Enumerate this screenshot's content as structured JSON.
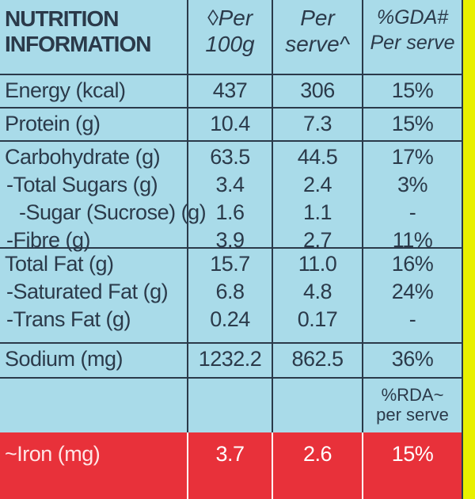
{
  "header": {
    "title_line1": "NUTRITION",
    "title_line2": "INFORMATION",
    "col1_line1": "◊Per",
    "col1_line2": "100g",
    "col2_line1": "Per",
    "col2_line2": "serve^",
    "col3_line1": "%GDA#",
    "col3_line2": "Per serve"
  },
  "rows": {
    "energy": {
      "label": "Energy (kcal)",
      "per100": "437",
      "serve": "306",
      "pct": "15%"
    },
    "protein": {
      "label": "Protein (g)",
      "per100": "10.4",
      "serve": "7.3",
      "pct": "15%"
    },
    "carb": {
      "label": "Carbohydrate (g)",
      "per100": "63.5",
      "serve": "44.5",
      "pct": "17%"
    },
    "sugars": {
      "label": "-Total Sugars (g)",
      "per100": "3.4",
      "serve": "2.4",
      "pct": "3%"
    },
    "sucrose": {
      "label": "-Sugar (Sucrose) (g)",
      "per100": "1.6",
      "serve": "1.1",
      "pct": "-"
    },
    "fibre": {
      "label": "-Fibre (g)",
      "per100": "3.9",
      "serve": "2.7",
      "pct": "11%"
    },
    "fat": {
      "label": "Total Fat (g)",
      "per100": "15.7",
      "serve": "11.0",
      "pct": "16%"
    },
    "satfat": {
      "label": "-Saturated Fat (g)",
      "per100": "6.8",
      "serve": "4.8",
      "pct": "24%"
    },
    "transfat": {
      "label": "-Trans Fat (g)",
      "per100": "0.24",
      "serve": "0.17",
      "pct": "-"
    },
    "sodium": {
      "label": "Sodium (mg)",
      "per100": "1232.2",
      "serve": "862.5",
      "pct": "36%"
    },
    "iron": {
      "label": "~Iron (mg)",
      "per100": "3.7",
      "serve": "2.6",
      "pct": "15%"
    }
  },
  "rda": {
    "line1": "%RDA~",
    "line2": "per serve"
  },
  "colors": {
    "panel": "#a9dbe9",
    "ink": "#2b3a4a",
    "iron_row": "#e8313a",
    "pack": "#e8f000"
  }
}
